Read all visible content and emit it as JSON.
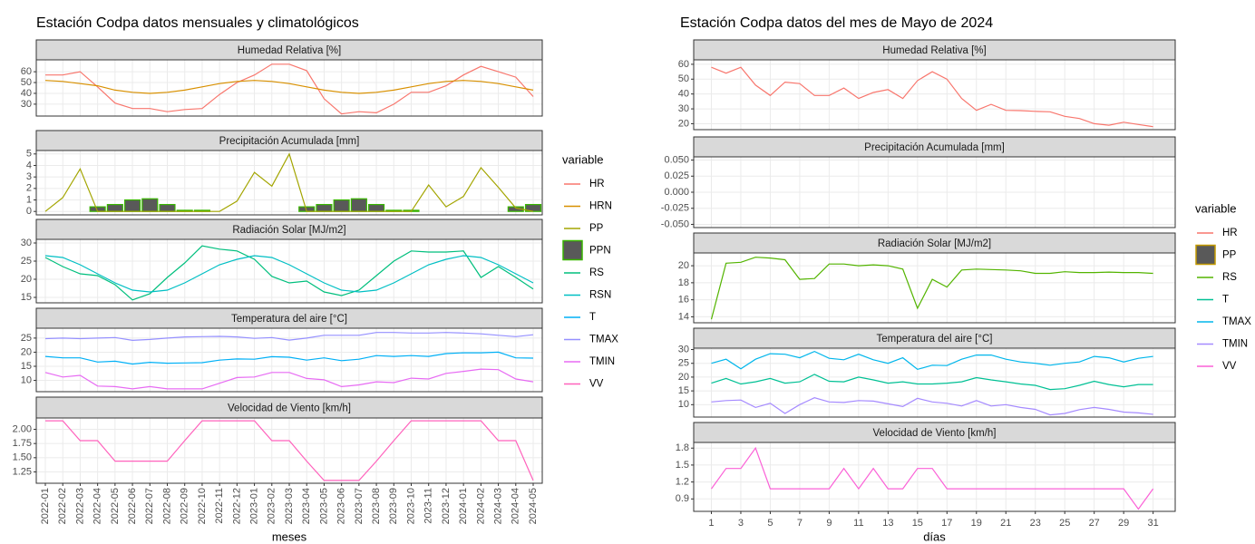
{
  "chart_data": [
    {
      "type": "line",
      "title": "Estación Codpa datos mensuales y climatológicos",
      "x_label": "meses",
      "legend_title": "variable",
      "categories": [
        "2022-01",
        "2022-02",
        "2022-03",
        "2022-04",
        "2022-05",
        "2022-06",
        "2022-07",
        "2022-08",
        "2022-09",
        "2022-10",
        "2022-11",
        "2022-12",
        "2023-01",
        "2023-02",
        "2023-03",
        "2023-04",
        "2023-05",
        "2023-06",
        "2023-07",
        "2023-08",
        "2023-09",
        "2023-10",
        "2023-11",
        "2023-12",
        "2024-01",
        "2024-02",
        "2024-03",
        "2024-04",
        "2024-05"
      ],
      "panels": [
        {
          "title": "Humedad Relativa [%]",
          "ylim": [
            19,
            71
          ],
          "yticks": [
            30,
            40,
            50,
            60
          ],
          "series": [
            {
              "name": "HR",
              "color": "#F8766D",
              "values": [
                57,
                57,
                60,
                46,
                31,
                26,
                26,
                23,
                25,
                26,
                39,
                50,
                57,
                67,
                67,
                61,
                35,
                21,
                23,
                22,
                30,
                41,
                41,
                47,
                57,
                65,
                60,
                55,
                37
              ]
            },
            {
              "name": "HRN",
              "color": "#D89000",
              "values": [
                52,
                51,
                49,
                47,
                43,
                41,
                40,
                41,
                43,
                46,
                49,
                51,
                52,
                51,
                49,
                46,
                43,
                41,
                40,
                41,
                43,
                46,
                49,
                51,
                52,
                51,
                49,
                46,
                43
              ]
            }
          ]
        },
        {
          "title": "Precipitación Acumulada [mm]",
          "ylim": [
            -0.3,
            5.3
          ],
          "yticks": [
            0,
            1,
            2,
            3,
            4,
            5
          ],
          "series": [
            {
              "name": "PP",
              "color": "#A3A500",
              "values": [
                0,
                1.2,
                3.7,
                0,
                0,
                0,
                0,
                0,
                0,
                0,
                0,
                0.9,
                3.4,
                2.2,
                5.0,
                0,
                0,
                0,
                0,
                0,
                0,
                0,
                2.3,
                0.4,
                1.3,
                3.8,
                2.1,
                0.3,
                0
              ]
            },
            {
              "name": "PPN",
              "color": "#39B600",
              "type": "bar",
              "values": [
                0,
                0,
                0,
                0.4,
                0.6,
                1.0,
                1.1,
                0.6,
                0.1,
                0.1,
                0,
                0,
                0,
                0,
                0,
                0.4,
                0.6,
                1.0,
                1.1,
                0.6,
                0.1,
                0.1,
                0,
                0,
                0,
                0,
                0,
                0.4,
                0.6
              ]
            }
          ]
        },
        {
          "title": "Radiación Solar [MJ/m2]",
          "ylim": [
            13.5,
            31
          ],
          "yticks": [
            15,
            20,
            25,
            30
          ],
          "series": [
            {
              "name": "RS",
              "color": "#00BF7D",
              "values": [
                26,
                23.5,
                21.5,
                21,
                18.5,
                14.3,
                16,
                20.5,
                24.5,
                29.2,
                28.3,
                27.8,
                25.5,
                20.8,
                19,
                19.5,
                16.5,
                15.5,
                17,
                21,
                25,
                27.8,
                27.5,
                27.5,
                27.8,
                20.5,
                23.5,
                20.5,
                17.3
              ]
            },
            {
              "name": "RSN",
              "color": "#00BFC4",
              "values": [
                26.5,
                26,
                24,
                21.5,
                19,
                17,
                16.5,
                17,
                19,
                21.5,
                24,
                25.5,
                26.5,
                26,
                24,
                21.5,
                19,
                17,
                16.5,
                17,
                19,
                21.5,
                24,
                25.5,
                26.5,
                26,
                24,
                21.5,
                19
              ]
            }
          ]
        },
        {
          "title": "Temperatura del aire [°C]",
          "ylim": [
            6,
            28.5
          ],
          "yticks": [
            10,
            15,
            20,
            25
          ],
          "series": [
            {
              "name": "T",
              "color": "#00B0F6",
              "values": [
                18.5,
                18,
                18,
                16.5,
                16.8,
                15.8,
                16.4,
                16.1,
                16.2,
                16.3,
                17.2,
                17.6,
                17.5,
                18.4,
                18.2,
                17.2,
                18,
                17,
                17.5,
                18.8,
                18.5,
                18.8,
                18.5,
                19.5,
                19.8,
                19.8,
                20,
                18,
                17.9
              ]
            },
            {
              "name": "TMAX",
              "color": "#9590FF",
              "values": [
                24.8,
                25,
                24.8,
                25,
                25.2,
                24.2,
                24.5,
                25,
                25.4,
                25.5,
                25.6,
                25.4,
                24.9,
                25.2,
                24.3,
                25,
                26,
                26,
                26,
                27,
                27,
                26.8,
                26.8,
                27,
                26.8,
                26.5,
                26,
                25.5,
                26.2
              ]
            },
            {
              "name": "TMIN",
              "color": "#E76BF3",
              "values": [
                12.8,
                11.2,
                11.8,
                8,
                7.8,
                7,
                7.8,
                7,
                7,
                7,
                9,
                11,
                11.2,
                12.8,
                12.8,
                10.7,
                10.2,
                7.8,
                8.4,
                9.5,
                9.2,
                10.8,
                10.5,
                12.5,
                13.2,
                14,
                13.8,
                10.5,
                9.5
              ]
            }
          ]
        },
        {
          "title": "Velocidad de Viento [km/h]",
          "ylim": [
            1.05,
            2.2
          ],
          "yticks": [
            {
              "value": 1.25,
              "label": "1.25"
            },
            {
              "value": 1.5,
              "label": "1.50"
            },
            {
              "value": 1.75,
              "label": "1.75"
            },
            {
              "value": 2,
              "label": "2.00"
            }
          ],
          "series": [
            {
              "name": "VV",
              "color": "#FF62BC",
              "values": [
                2.15,
                2.15,
                1.8,
                1.8,
                1.44,
                1.44,
                1.44,
                1.44,
                1.8,
                2.15,
                2.15,
                2.15,
                2.15,
                1.8,
                1.8,
                1.44,
                1.1,
                1.1,
                1.1,
                1.44,
                1.8,
                2.15,
                2.15,
                2.15,
                2.15,
                2.15,
                1.8,
                1.8,
                1.1
              ]
            }
          ]
        }
      ]
    },
    {
      "type": "line",
      "title": "Estación Codpa datos del mes de Mayo de 2024",
      "x_label": "días",
      "legend_title": "variable",
      "x": [
        1,
        2,
        3,
        4,
        5,
        6,
        7,
        8,
        9,
        10,
        11,
        12,
        13,
        14,
        15,
        16,
        17,
        18,
        19,
        20,
        21,
        22,
        23,
        24,
        25,
        26,
        27,
        28,
        29,
        30,
        31
      ],
      "xlim": [
        -0.2,
        32.5
      ],
      "xticks": [
        1,
        3,
        5,
        7,
        9,
        11,
        13,
        15,
        17,
        19,
        21,
        23,
        25,
        27,
        29,
        31
      ],
      "panels": [
        {
          "title": "Humedad Relativa [%]",
          "ylim": [
            16,
            63
          ],
          "yticks": [
            20,
            30,
            40,
            50,
            60
          ],
          "series": [
            {
              "name": "HR",
              "color": "#F8766D",
              "values": [
                58,
                54,
                58,
                46,
                39,
                48,
                47,
                39,
                39,
                44,
                37,
                41,
                43,
                37,
                49,
                55,
                50,
                37,
                29,
                33,
                29,
                28.8,
                28.3,
                28,
                25,
                23.5,
                20,
                19,
                21,
                19.5,
                18
              ]
            }
          ]
        },
        {
          "title": "Precipitación Acumulada [mm]",
          "ylim": [
            -0.055,
            0.055
          ],
          "yticks": [
            {
              "value": -0.05,
              "label": "-0.050"
            },
            {
              "value": -0.025,
              "label": "-0.025"
            },
            {
              "value": 0,
              "label": "0.000"
            },
            {
              "value": 0.025,
              "label": "0.025"
            },
            {
              "value": 0.05,
              "label": "0.050"
            }
          ],
          "series": [
            {
              "name": "PP",
              "color": "#C49A00",
              "type": "bar",
              "values": [
                0,
                0,
                0,
                0,
                0,
                0,
                0,
                0,
                0,
                0,
                0,
                0,
                0,
                0,
                0,
                0,
                0,
                0,
                0,
                0,
                0,
                0,
                0,
                0,
                0,
                0,
                0,
                0,
                0,
                0,
                0
              ]
            }
          ]
        },
        {
          "title": "Radiación Solar [MJ/m2]",
          "ylim": [
            13.3,
            21.5
          ],
          "yticks": [
            14,
            16,
            18,
            20
          ],
          "series": [
            {
              "name": "RS",
              "color": "#53B400",
              "values": [
                13.7,
                20.3,
                20.4,
                21,
                20.9,
                20.7,
                18.4,
                18.5,
                20.2,
                20.2,
                20,
                20.1,
                20,
                19.6,
                15,
                18.4,
                17.5,
                19.5,
                19.6,
                19.55,
                19.5,
                19.4,
                19.1,
                19.1,
                19.3,
                19.2,
                19.2,
                19.25,
                19.2,
                19.2,
                19.1
              ]
            }
          ]
        },
        {
          "title": "Temperatura del aire [°C]",
          "ylim": [
            5.5,
            30.5
          ],
          "yticks": [
            10,
            15,
            20,
            25,
            30
          ],
          "series": [
            {
              "name": "T",
              "color": "#00C094",
              "values": [
                17.8,
                19.5,
                17.5,
                18.3,
                19.5,
                17.8,
                18.3,
                21,
                18.5,
                18.3,
                20,
                19,
                17.8,
                18.3,
                17.5,
                17.5,
                17.8,
                18.3,
                19.8,
                19,
                18.3,
                17.5,
                17,
                15.5,
                15.8,
                17,
                18.5,
                17.3,
                16.5,
                17.3,
                17.3
              ]
            },
            {
              "name": "TMAX",
              "color": "#00B6EB",
              "values": [
                25,
                26.5,
                23,
                26.5,
                28.5,
                28.3,
                27,
                29.3,
                26.8,
                26.3,
                28.3,
                26.3,
                25,
                27,
                22.8,
                24.3,
                24.2,
                26.5,
                28,
                28,
                26.5,
                25.5,
                25,
                24.3,
                25,
                25.5,
                27.5,
                27,
                25.5,
                26.8,
                27.5
              ]
            },
            {
              "name": "TMIN",
              "color": "#A58AFF",
              "values": [
                11,
                11.5,
                11.7,
                9,
                10.5,
                6.8,
                10,
                12.5,
                11,
                10.8,
                11.5,
                11.3,
                10.3,
                9.3,
                12.3,
                11,
                10.5,
                9.5,
                11.5,
                9.5,
                10,
                9,
                8.3,
                6.3,
                6.8,
                8.2,
                9,
                8.3,
                7.3,
                7,
                6.5
              ]
            }
          ]
        },
        {
          "title": "Velocidad de Viento [km/h]",
          "ylim": [
            0.68,
            1.9
          ],
          "yticks": [
            0.9,
            1.2,
            1.5,
            1.8
          ],
          "series": [
            {
              "name": "VV",
              "color": "#FB61D7",
              "values": [
                1.08,
                1.44,
                1.44,
                1.8,
                1.08,
                1.08,
                1.08,
                1.08,
                1.08,
                1.44,
                1.08,
                1.44,
                1.08,
                1.08,
                1.44,
                1.44,
                1.08,
                1.08,
                1.08,
                1.08,
                1.08,
                1.08,
                1.08,
                1.08,
                1.08,
                1.08,
                1.08,
                1.08,
                1.08,
                0.72,
                1.08
              ]
            }
          ]
        }
      ]
    }
  ]
}
